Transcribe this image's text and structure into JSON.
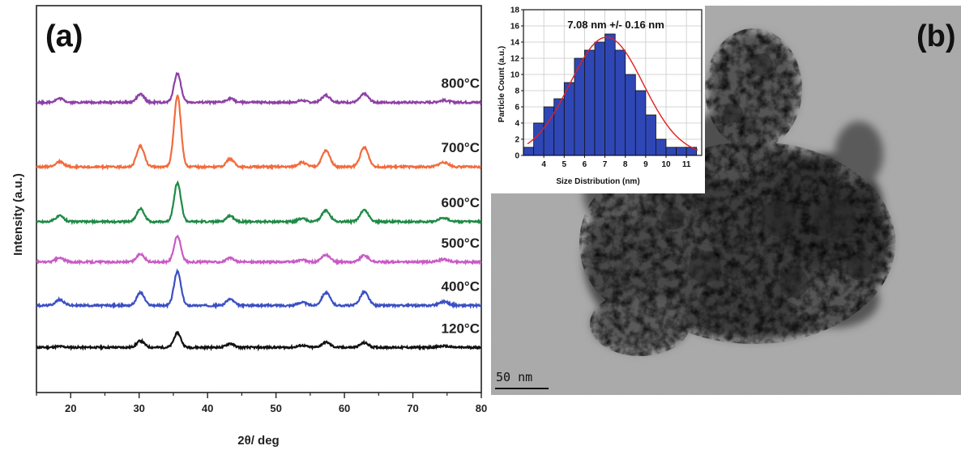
{
  "panel_a": {
    "label": "(a)",
    "chart_data": {
      "type": "line",
      "xlabel": "2θ/ deg",
      "ylabel": "Intensity (a.u.)",
      "xlim": [
        15,
        80
      ],
      "xticks": [
        20,
        30,
        40,
        50,
        60,
        70,
        80
      ],
      "peaks_2theta": [
        18.4,
        30.2,
        35.6,
        43.3,
        53.8,
        57.3,
        62.9,
        74.5
      ],
      "series": [
        {
          "name": "120°C",
          "color": "#111111",
          "baseline": 0.14,
          "peak_heights": [
            0.003,
            0.02,
            0.045,
            0.012,
            0.006,
            0.016,
            0.014,
            0.004
          ]
        },
        {
          "name": "400°C",
          "color": "#3a4fc4",
          "baseline": 0.27,
          "peak_heights": [
            0.018,
            0.04,
            0.105,
            0.02,
            0.01,
            0.04,
            0.042,
            0.012
          ]
        },
        {
          "name": "500°C",
          "color": "#c95ac6",
          "baseline": 0.405,
          "peak_heights": [
            0.012,
            0.025,
            0.08,
            0.012,
            0.006,
            0.022,
            0.02,
            0.008
          ]
        },
        {
          "name": "600°C",
          "color": "#1e8a45",
          "baseline": 0.53,
          "peak_heights": [
            0.018,
            0.04,
            0.12,
            0.018,
            0.01,
            0.035,
            0.036,
            0.012
          ]
        },
        {
          "name": "700°C",
          "color": "#f26b3d",
          "baseline": 0.7,
          "peak_heights": [
            0.016,
            0.065,
            0.22,
            0.025,
            0.014,
            0.05,
            0.06,
            0.014
          ]
        },
        {
          "name": "800°C",
          "color": "#8e3fa6",
          "baseline": 0.9,
          "peak_heights": [
            0.012,
            0.025,
            0.09,
            0.012,
            0.006,
            0.022,
            0.026,
            0.006
          ]
        }
      ],
      "ylim": [
        0,
        1.2
      ],
      "grid": false
    }
  },
  "panel_b": {
    "label": "(b)",
    "scale_bar": "50 nm",
    "inset": {
      "chart_data": {
        "type": "bar",
        "title": "7.08 nm +/- 0.16 nm",
        "xlabel": "Size Distribution (nm)",
        "ylabel": "Particle Count (a.u.)",
        "bin_centers": [
          3.25,
          3.75,
          4.25,
          4.75,
          5.25,
          5.75,
          6.25,
          6.75,
          7.25,
          7.75,
          8.25,
          8.75,
          9.25,
          9.75,
          10.25,
          10.75,
          11.25
        ],
        "values": [
          1,
          4,
          6,
          7,
          9,
          12,
          13,
          14,
          15,
          13,
          10,
          8,
          5,
          2,
          1,
          1,
          1
        ],
        "xlim": [
          3,
          11.75
        ],
        "xticks": [
          4,
          5,
          6,
          7,
          8,
          9,
          10,
          11
        ],
        "ylim": [
          0,
          18
        ],
        "yticks": [
          0,
          2,
          4,
          6,
          8,
          10,
          12,
          14,
          16,
          18
        ],
        "fit": {
          "type": "gaussian",
          "mean": 7.08,
          "color": "#e02020"
        },
        "bar_color": "#2f47b5",
        "grid": true
      }
    }
  }
}
